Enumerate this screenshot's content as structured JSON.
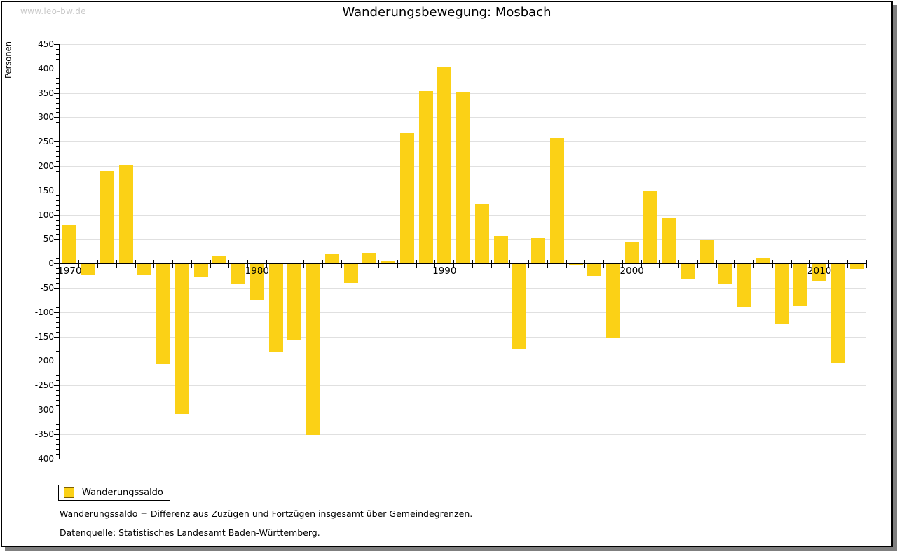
{
  "watermark": "www.leo-bw.de",
  "title": "Wanderungsbewegung: Mosbach",
  "legend": {
    "label": "Wanderungssaldo"
  },
  "footnotes": {
    "definition": "Wanderungssaldo = Differenz aus Zuzügen und Fortzügen insgesamt über Gemeindegrenzen.",
    "source": "Datenquelle: Statistisches Landesamt Baden-Württemberg."
  },
  "colors": {
    "bar": "#fbd116",
    "grid": "#e0e0e0",
    "axis": "#000000",
    "watermark": "#c9c9c9",
    "frame_shadow": "#7f7f7f"
  },
  "chart_data": {
    "type": "bar",
    "title": "Wanderungsbewegung: Mosbach",
    "xlabel": "",
    "ylabel": "Personen",
    "ylim": [
      -400,
      450
    ],
    "y_major_tick_step": 50,
    "y_minor_tick_step": 10,
    "grid": "horizontal gridlines every 50, zero line emphasized black",
    "legend_position": "bottom-left",
    "x_decade_labels": [
      "1970",
      "1980",
      "1990",
      "2000",
      "2010"
    ],
    "x": [
      1970,
      1971,
      1972,
      1973,
      1974,
      1975,
      1976,
      1977,
      1978,
      1979,
      1980,
      1981,
      1982,
      1983,
      1984,
      1985,
      1986,
      1987,
      1988,
      1989,
      1990,
      1991,
      1992,
      1993,
      1994,
      1995,
      1996,
      1997,
      1998,
      1999,
      2000,
      2001,
      2002,
      2003,
      2004,
      2005,
      2006,
      2007,
      2008,
      2009,
      2010,
      2011,
      2012
    ],
    "series": [
      {
        "name": "Wanderungssaldo",
        "values": [
          80,
          -24,
          190,
          202,
          -23,
          -206,
          -309,
          -28,
          14,
          -41,
          -76,
          -181,
          -157,
          -352,
          20,
          -40,
          22,
          6,
          268,
          354,
          402,
          351,
          123,
          57,
          -177,
          52,
          257,
          -4,
          -25,
          -152,
          44,
          150,
          93,
          -32,
          48,
          -43,
          -91,
          10,
          -125,
          -88,
          -36,
          -205,
          -11
        ]
      }
    ]
  }
}
